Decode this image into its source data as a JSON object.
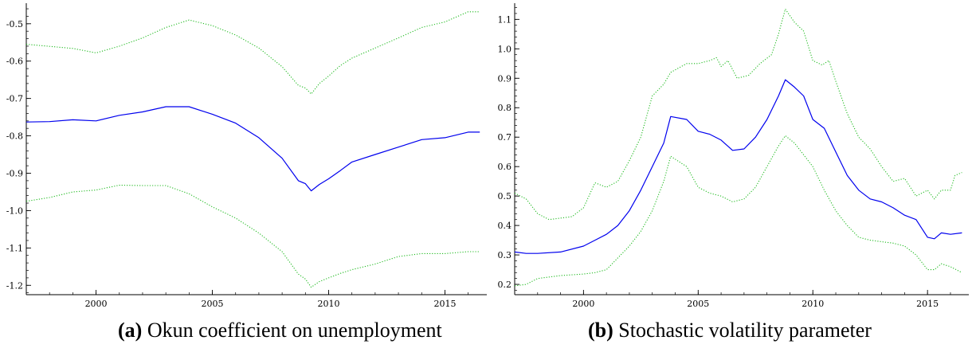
{
  "chart_data": [
    {
      "type": "line",
      "caption_tag": "(a)",
      "caption_text": "Okun coefficient on unemployment",
      "xlim": [
        1997,
        2016.8
      ],
      "ylim": [
        -1.225,
        -0.445
      ],
      "x_ticks": [
        {
          "v": 2000,
          "label": "2000"
        },
        {
          "v": 2005,
          "label": "2005"
        },
        {
          "v": 2010,
          "label": "2010"
        },
        {
          "v": 2015,
          "label": "2015"
        }
      ],
      "y_ticks": [
        {
          "v": -0.5,
          "label": "-0.5"
        },
        {
          "v": -0.6,
          "label": "-0.6"
        },
        {
          "v": -0.7,
          "label": "-0.7"
        },
        {
          "v": -0.8,
          "label": "-0.8"
        },
        {
          "v": -0.9,
          "label": "-0.9"
        },
        {
          "v": -1.0,
          "label": "-1.0"
        },
        {
          "v": -1.1,
          "label": "-1.1"
        },
        {
          "v": -1.2,
          "label": "-1.2"
        }
      ],
      "series": [
        {
          "style": "upper",
          "color": "#22bb22",
          "dash": "dotted",
          "points": [
            [
              1997,
              -0.555
            ],
            [
              1999,
              -0.566
            ],
            [
              2000,
              -0.578
            ],
            [
              2001,
              -0.56
            ],
            [
              2002,
              -0.538
            ],
            [
              2003,
              -0.51
            ],
            [
              2004,
              -0.49
            ],
            [
              2005,
              -0.505
            ],
            [
              2006,
              -0.53
            ],
            [
              2007,
              -0.565
            ],
            [
              2008,
              -0.615
            ],
            [
              2008.7,
              -0.665
            ],
            [
              2009,
              -0.672
            ],
            [
              2009.25,
              -0.688
            ],
            [
              2009.6,
              -0.66
            ],
            [
              2010,
              -0.64
            ],
            [
              2010.5,
              -0.612
            ],
            [
              2011,
              -0.592
            ],
            [
              2012,
              -0.565
            ],
            [
              2013,
              -0.538
            ],
            [
              2014,
              -0.51
            ],
            [
              2015,
              -0.495
            ],
            [
              2016,
              -0.468
            ],
            [
              2016.5,
              -0.468
            ]
          ]
        },
        {
          "style": "mean",
          "color": "#0000ee",
          "dash": "solid",
          "points": [
            [
              1997,
              -0.763
            ],
            [
              1998,
              -0.762
            ],
            [
              1999,
              -0.757
            ],
            [
              2000,
              -0.76
            ],
            [
              2001,
              -0.745
            ],
            [
              2002,
              -0.736
            ],
            [
              2003,
              -0.722
            ],
            [
              2004,
              -0.722
            ],
            [
              2005,
              -0.742
            ],
            [
              2006,
              -0.766
            ],
            [
              2007,
              -0.805
            ],
            [
              2008,
              -0.86
            ],
            [
              2008.7,
              -0.92
            ],
            [
              2009,
              -0.928
            ],
            [
              2009.25,
              -0.947
            ],
            [
              2009.6,
              -0.93
            ],
            [
              2010,
              -0.915
            ],
            [
              2010.5,
              -0.893
            ],
            [
              2011,
              -0.87
            ],
            [
              2012,
              -0.85
            ],
            [
              2013,
              -0.83
            ],
            [
              2014,
              -0.81
            ],
            [
              2015,
              -0.805
            ],
            [
              2016,
              -0.79
            ],
            [
              2016.5,
              -0.79
            ]
          ]
        },
        {
          "style": "lower",
          "color": "#22bb22",
          "dash": "dotted",
          "points": [
            [
              1997,
              -0.975
            ],
            [
              1998,
              -0.965
            ],
            [
              1999,
              -0.95
            ],
            [
              2000,
              -0.945
            ],
            [
              2001,
              -0.932
            ],
            [
              2002,
              -0.933
            ],
            [
              2003,
              -0.933
            ],
            [
              2004,
              -0.955
            ],
            [
              2005,
              -0.99
            ],
            [
              2006,
              -1.02
            ],
            [
              2007,
              -1.06
            ],
            [
              2008,
              -1.11
            ],
            [
              2008.7,
              -1.17
            ],
            [
              2009,
              -1.183
            ],
            [
              2009.25,
              -1.205
            ],
            [
              2009.6,
              -1.19
            ],
            [
              2010,
              -1.18
            ],
            [
              2010.5,
              -1.168
            ],
            [
              2011,
              -1.158
            ],
            [
              2012,
              -1.143
            ],
            [
              2013,
              -1.123
            ],
            [
              2014,
              -1.115
            ],
            [
              2015,
              -1.115
            ],
            [
              2016,
              -1.11
            ],
            [
              2016.5,
              -1.11
            ]
          ]
        }
      ]
    },
    {
      "type": "line",
      "caption_tag": "(b)",
      "caption_text": "Stochastic volatility parameter",
      "xlim": [
        1997,
        2016.8
      ],
      "ylim": [
        0.165,
        1.155
      ],
      "x_ticks": [
        {
          "v": 2000,
          "label": "2000"
        },
        {
          "v": 2005,
          "label": "2005"
        },
        {
          "v": 2010,
          "label": "2010"
        },
        {
          "v": 2015,
          "label": "2015"
        }
      ],
      "y_ticks": [
        {
          "v": 1.1,
          "label": "1.1"
        },
        {
          "v": 1.0,
          "label": "1.0"
        },
        {
          "v": 0.9,
          "label": "0.9"
        },
        {
          "v": 0.8,
          "label": "0.8"
        },
        {
          "v": 0.7,
          "label": "0.7"
        },
        {
          "v": 0.6,
          "label": "0.6"
        },
        {
          "v": 0.5,
          "label": "0.5"
        },
        {
          "v": 0.4,
          "label": "0.4"
        },
        {
          "v": 0.3,
          "label": "0.3"
        },
        {
          "v": 0.2,
          "label": "0.2"
        }
      ],
      "series": [
        {
          "style": "upper",
          "color": "#22bb22",
          "dash": "dotted",
          "points": [
            [
              1997,
              0.51
            ],
            [
              1997.5,
              0.49
            ],
            [
              1998,
              0.44
            ],
            [
              1998.5,
              0.42
            ],
            [
              1999.5,
              0.43
            ],
            [
              2000,
              0.46
            ],
            [
              2000.5,
              0.545
            ],
            [
              2001,
              0.53
            ],
            [
              2001.5,
              0.55
            ],
            [
              2002,
              0.62
            ],
            [
              2002.5,
              0.7
            ],
            [
              2003,
              0.84
            ],
            [
              2003.5,
              0.88
            ],
            [
              2003.8,
              0.92
            ],
            [
              2004.5,
              0.95
            ],
            [
              2005,
              0.95
            ],
            [
              2005.5,
              0.96
            ],
            [
              2005.8,
              0.97
            ],
            [
              2006,
              0.94
            ],
            [
              2006.3,
              0.96
            ],
            [
              2006.7,
              0.9
            ],
            [
              2007.2,
              0.91
            ],
            [
              2007.7,
              0.95
            ],
            [
              2008.2,
              0.98
            ],
            [
              2008.5,
              1.05
            ],
            [
              2008.8,
              1.135
            ],
            [
              2009.2,
              1.09
            ],
            [
              2009.6,
              1.06
            ],
            [
              2010,
              0.96
            ],
            [
              2010.4,
              0.945
            ],
            [
              2010.7,
              0.96
            ],
            [
              2011,
              0.89
            ],
            [
              2011.5,
              0.78
            ],
            [
              2012,
              0.7
            ],
            [
              2012.5,
              0.66
            ],
            [
              2013,
              0.6
            ],
            [
              2013.5,
              0.55
            ],
            [
              2014,
              0.56
            ],
            [
              2014.5,
              0.5
            ],
            [
              2015,
              0.52
            ],
            [
              2015.3,
              0.49
            ],
            [
              2015.6,
              0.52
            ],
            [
              2016,
              0.52
            ],
            [
              2016.2,
              0.57
            ],
            [
              2016.5,
              0.58
            ]
          ]
        },
        {
          "style": "mean",
          "color": "#0000ee",
          "dash": "solid",
          "points": [
            [
              1997,
              0.31
            ],
            [
              1997.5,
              0.305
            ],
            [
              1998,
              0.305
            ],
            [
              1999,
              0.31
            ],
            [
              2000,
              0.33
            ],
            [
              2000.5,
              0.35
            ],
            [
              2001,
              0.37
            ],
            [
              2001.5,
              0.4
            ],
            [
              2002,
              0.45
            ],
            [
              2002.5,
              0.52
            ],
            [
              2003,
              0.6
            ],
            [
              2003.5,
              0.68
            ],
            [
              2003.8,
              0.77
            ],
            [
              2004.5,
              0.76
            ],
            [
              2005,
              0.72
            ],
            [
              2005.5,
              0.71
            ],
            [
              2006,
              0.69
            ],
            [
              2006.5,
              0.655
            ],
            [
              2007,
              0.66
            ],
            [
              2007.5,
              0.7
            ],
            [
              2008,
              0.76
            ],
            [
              2008.5,
              0.84
            ],
            [
              2008.8,
              0.895
            ],
            [
              2009.2,
              0.87
            ],
            [
              2009.6,
              0.84
            ],
            [
              2010,
              0.76
            ],
            [
              2010.5,
              0.73
            ],
            [
              2011,
              0.65
            ],
            [
              2011.5,
              0.57
            ],
            [
              2012,
              0.52
            ],
            [
              2012.5,
              0.49
            ],
            [
              2013,
              0.48
            ],
            [
              2013.5,
              0.46
            ],
            [
              2014,
              0.435
            ],
            [
              2014.5,
              0.42
            ],
            [
              2015,
              0.36
            ],
            [
              2015.3,
              0.355
            ],
            [
              2015.6,
              0.375
            ],
            [
              2016,
              0.37
            ],
            [
              2016.5,
              0.375
            ]
          ]
        },
        {
          "style": "lower",
          "color": "#22bb22",
          "dash": "dotted",
          "points": [
            [
              1997,
              0.195
            ],
            [
              1997.5,
              0.2
            ],
            [
              1998,
              0.22
            ],
            [
              1999,
              0.23
            ],
            [
              2000,
              0.235
            ],
            [
              2000.5,
              0.24
            ],
            [
              2001,
              0.25
            ],
            [
              2001.5,
              0.29
            ],
            [
              2002,
              0.33
            ],
            [
              2002.5,
              0.38
            ],
            [
              2003,
              0.45
            ],
            [
              2003.5,
              0.55
            ],
            [
              2003.8,
              0.635
            ],
            [
              2004.5,
              0.6
            ],
            [
              2005,
              0.53
            ],
            [
              2005.5,
              0.51
            ],
            [
              2006,
              0.5
            ],
            [
              2006.5,
              0.48
            ],
            [
              2007,
              0.49
            ],
            [
              2007.5,
              0.53
            ],
            [
              2008,
              0.6
            ],
            [
              2008.5,
              0.67
            ],
            [
              2008.8,
              0.705
            ],
            [
              2009.2,
              0.68
            ],
            [
              2009.6,
              0.64
            ],
            [
              2010,
              0.6
            ],
            [
              2010.5,
              0.52
            ],
            [
              2011,
              0.45
            ],
            [
              2011.5,
              0.4
            ],
            [
              2012,
              0.36
            ],
            [
              2012.5,
              0.35
            ],
            [
              2013,
              0.345
            ],
            [
              2013.5,
              0.34
            ],
            [
              2014,
              0.33
            ],
            [
              2014.5,
              0.3
            ],
            [
              2015,
              0.25
            ],
            [
              2015.3,
              0.25
            ],
            [
              2015.6,
              0.27
            ],
            [
              2016,
              0.26
            ],
            [
              2016.5,
              0.24
            ]
          ]
        }
      ]
    }
  ]
}
